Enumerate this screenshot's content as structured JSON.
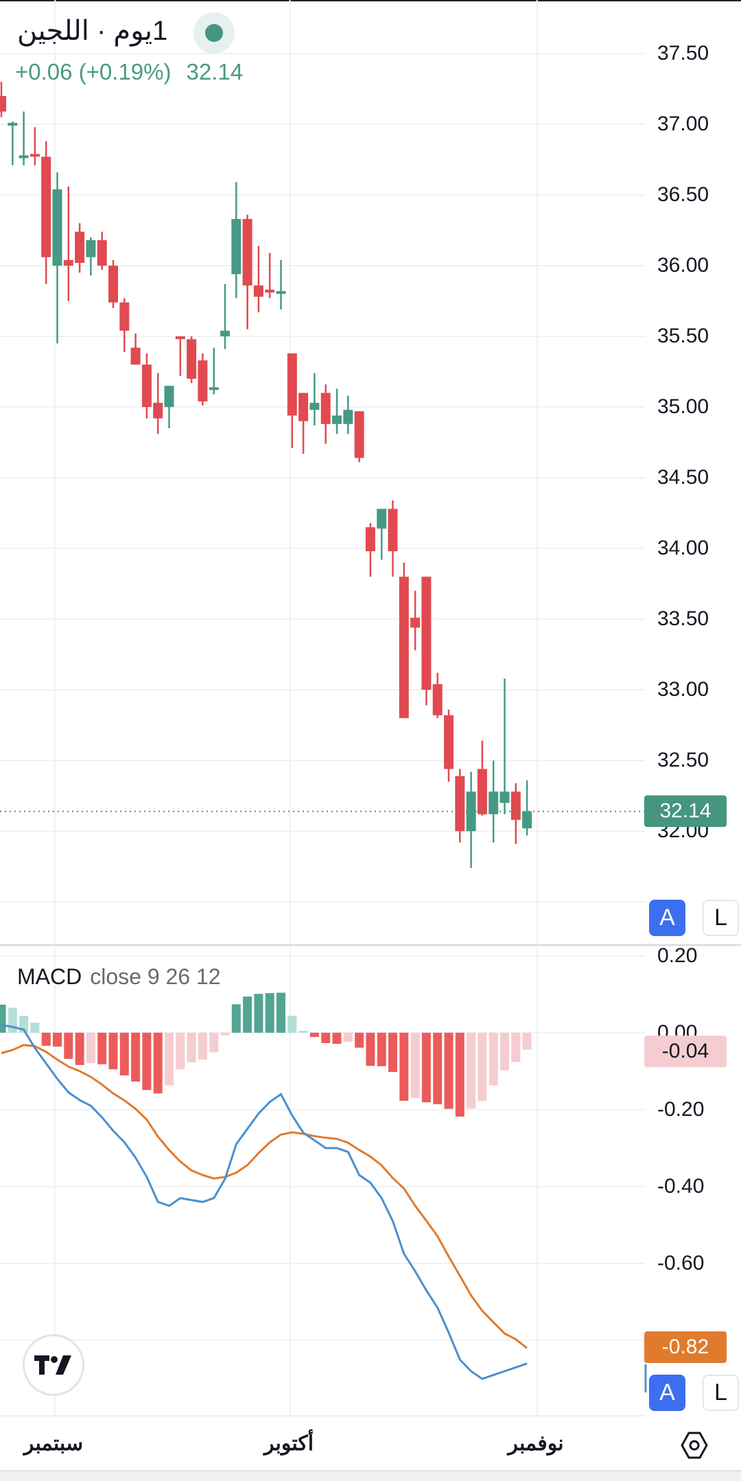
{
  "header": {
    "title": "1يوم · اللجين",
    "change": "+0.06 (+0.19%)",
    "last_price": "32.14",
    "status_icon": "market-open-dot-icon"
  },
  "price_axis": {
    "labels": [
      "37.50",
      "37.00",
      "36.50",
      "36.00",
      "35.50",
      "35.00",
      "34.50",
      "34.00",
      "33.50",
      "33.00",
      "32.50",
      "32.00"
    ],
    "last_price_tag": "32.14",
    "auto_button": "A",
    "log_button": "L"
  },
  "macd": {
    "legend_name": "MACD",
    "legend_params": "close 9 26 12",
    "axis_labels": [
      "0.20",
      "0.00",
      "-0.20",
      "-0.40",
      "-0.60"
    ],
    "histogram_tag": "-0.04",
    "signal_tag": "-0.82",
    "auto_button": "A",
    "log_button": "L"
  },
  "time_axis": {
    "labels": [
      "سبتمبر",
      "أكتوبر",
      "نوفمبر"
    ],
    "settings_icon": "hexagon-settings-icon"
  },
  "logo": "TV",
  "colors": {
    "up": "#469a85",
    "down": "#e04a50",
    "hist_up_strong": "#52a593",
    "hist_up_weak": "#b4ded7",
    "hist_down_strong": "#ec5b5b",
    "hist_down_weak": "#f5cdd0",
    "macd_line": "#4a8fcf",
    "signal_line": "#e07b2e",
    "last_price": "#45957f"
  },
  "chart_data": [
    {
      "type": "candlestick",
      "title": "اللجين · 1يوم",
      "interval": "1D",
      "ylim": [
        31.195,
        37.879
      ],
      "yticks": [
        37.5,
        37.0,
        36.5,
        36.0,
        35.5,
        35.0,
        34.5,
        34.0,
        33.5,
        33.0,
        32.5,
        32.0,
        31.5
      ],
      "x_month_labels": [
        {
          "label": "سبتمبر",
          "index": 4.8
        },
        {
          "label": "أكتوبر",
          "index": 25.8
        },
        {
          "label": "نوفمبر",
          "index": 47.9
        }
      ],
      "last_price": 32.14,
      "ohlc": [
        [
          37.2,
          37.3,
          37.05,
          37.09
        ],
        [
          37.0,
          37.02,
          36.71,
          37.01
        ],
        [
          36.77,
          37.09,
          36.71,
          36.78
        ],
        [
          36.79,
          36.98,
          36.71,
          36.78
        ],
        [
          36.77,
          36.88,
          35.87,
          36.06
        ],
        [
          36.0,
          36.66,
          35.45,
          36.54
        ],
        [
          36.04,
          36.56,
          35.75,
          36.0
        ],
        [
          36.24,
          36.3,
          35.95,
          36.02
        ],
        [
          36.06,
          36.2,
          35.93,
          36.18
        ],
        [
          36.18,
          36.24,
          35.97,
          36.0
        ],
        [
          36.0,
          36.04,
          35.7,
          35.74
        ],
        [
          35.74,
          35.77,
          35.39,
          35.54
        ],
        [
          35.42,
          35.52,
          35.3,
          35.3
        ],
        [
          35.3,
          35.38,
          34.92,
          35.0
        ],
        [
          35.03,
          35.24,
          34.81,
          34.92
        ],
        [
          35.0,
          35.15,
          34.85,
          35.15
        ],
        [
          35.5,
          35.5,
          35.22,
          35.48
        ],
        [
          35.48,
          35.5,
          35.17,
          35.2
        ],
        [
          35.33,
          35.38,
          35.01,
          35.04
        ],
        [
          35.13,
          35.42,
          35.09,
          35.14
        ],
        [
          35.5,
          35.87,
          35.41,
          35.54
        ],
        [
          35.94,
          36.59,
          35.77,
          36.33
        ],
        [
          36.33,
          36.36,
          35.55,
          35.86
        ],
        [
          35.86,
          36.14,
          35.67,
          35.78
        ],
        [
          35.83,
          36.09,
          35.77,
          35.81
        ],
        [
          35.81,
          36.04,
          35.69,
          35.82
        ],
        [
          35.38,
          35.38,
          34.71,
          34.94
        ],
        [
          35.1,
          35.1,
          34.67,
          34.9
        ],
        [
          34.98,
          35.24,
          34.87,
          35.03
        ],
        [
          35.1,
          35.16,
          34.74,
          34.88
        ],
        [
          34.88,
          35.13,
          34.81,
          34.94
        ],
        [
          34.88,
          35.08,
          34.81,
          34.98
        ],
        [
          34.97,
          34.97,
          34.61,
          34.64
        ],
        [
          34.15,
          34.18,
          33.8,
          33.98
        ],
        [
          34.14,
          34.28,
          33.92,
          34.28
        ],
        [
          34.28,
          34.34,
          33.8,
          33.98
        ],
        [
          33.8,
          33.9,
          32.8,
          32.8
        ],
        [
          33.51,
          33.7,
          33.28,
          33.44
        ],
        [
          33.8,
          33.8,
          32.89,
          33.0
        ],
        [
          33.04,
          33.12,
          32.8,
          32.82
        ],
        [
          32.82,
          32.86,
          32.35,
          32.44
        ],
        [
          32.39,
          32.44,
          31.92,
          32.0
        ],
        [
          32.0,
          32.42,
          31.74,
          32.28
        ],
        [
          32.44,
          32.64,
          32.11,
          32.12
        ],
        [
          32.12,
          32.5,
          31.92,
          32.28
        ],
        [
          32.2,
          33.08,
          32.12,
          32.28
        ],
        [
          32.28,
          32.34,
          31.91,
          32.08
        ],
        [
          32.02,
          32.36,
          31.97,
          32.14
        ]
      ]
    },
    {
      "type": "line",
      "title": "MACD close 9 26 12",
      "ylim": [
        -0.996,
        0.228
      ],
      "yticks": [
        0.2,
        0.0,
        -0.2,
        -0.4,
        -0.6,
        -0.8
      ],
      "series": [
        {
          "name": "MACD",
          "values": [
            0.02,
            0.015,
            0.008,
            -0.04,
            -0.08,
            -0.12,
            -0.155,
            -0.175,
            -0.19,
            -0.22,
            -0.255,
            -0.285,
            -0.325,
            -0.375,
            -0.44,
            -0.45,
            -0.43,
            -0.435,
            -0.44,
            -0.43,
            -0.38,
            -0.29,
            -0.25,
            -0.21,
            -0.18,
            -0.16,
            -0.215,
            -0.26,
            -0.28,
            -0.3,
            -0.3,
            -0.31,
            -0.37,
            -0.39,
            -0.43,
            -0.49,
            -0.575,
            -0.62,
            -0.67,
            -0.715,
            -0.78,
            -0.85,
            -0.88,
            -0.9,
            -0.89,
            -0.88,
            -0.87,
            -0.86
          ]
        },
        {
          "name": "Signal",
          "values": [
            -0.053,
            -0.045,
            -0.032,
            -0.035,
            -0.05,
            -0.07,
            -0.088,
            -0.1,
            -0.115,
            -0.135,
            -0.158,
            -0.176,
            -0.198,
            -0.226,
            -0.27,
            -0.305,
            -0.335,
            -0.358,
            -0.37,
            -0.379,
            -0.375,
            -0.364,
            -0.344,
            -0.313,
            -0.285,
            -0.265,
            -0.259,
            -0.263,
            -0.269,
            -0.273,
            -0.276,
            -0.286,
            -0.305,
            -0.322,
            -0.345,
            -0.378,
            -0.405,
            -0.45,
            -0.489,
            -0.529,
            -0.582,
            -0.632,
            -0.683,
            -0.723,
            -0.753,
            -0.782,
            -0.797,
            -0.82
          ]
        },
        {
          "name": "Histogram",
          "type": "bar",
          "values": [
            0.073,
            0.065,
            0.044,
            0.026,
            -0.034,
            -0.036,
            -0.068,
            -0.084,
            -0.079,
            -0.082,
            -0.095,
            -0.111,
            -0.127,
            -0.149,
            -0.158,
            -0.137,
            -0.095,
            -0.077,
            -0.07,
            -0.051,
            -0.007,
            0.074,
            0.094,
            0.101,
            0.103,
            0.104,
            0.044,
            0.005,
            -0.011,
            -0.027,
            -0.029,
            -0.024,
            -0.039,
            -0.086,
            -0.087,
            -0.102,
            -0.177,
            -0.17,
            -0.181,
            -0.186,
            -0.198,
            -0.218,
            -0.197,
            -0.177,
            -0.137,
            -0.098,
            -0.076,
            -0.044
          ]
        }
      ]
    }
  ]
}
